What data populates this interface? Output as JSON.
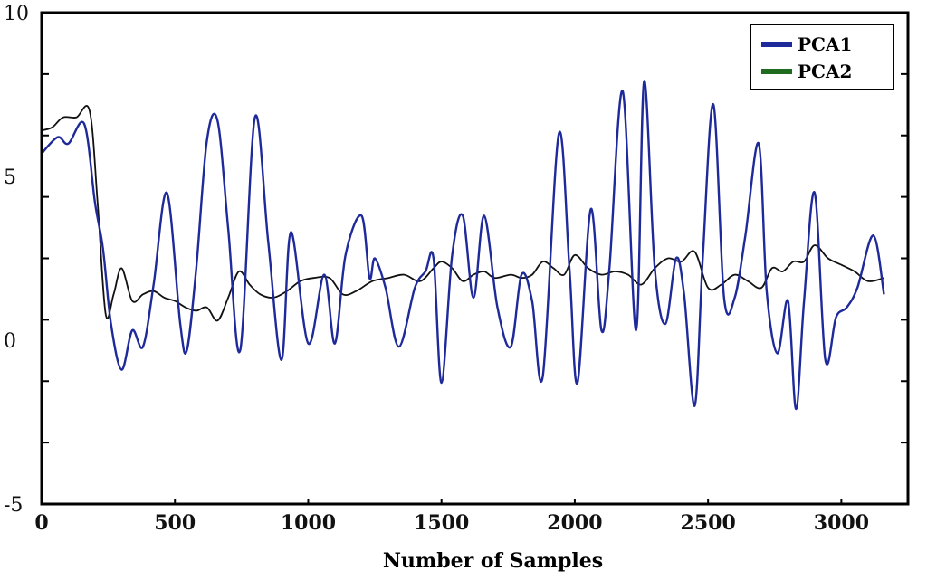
{
  "chart_data": {
    "type": "line",
    "title": "",
    "xlabel": "Number of Samples",
    "ylabel": "",
    "xlim": [
      0,
      3250
    ],
    "ylim": [
      -5,
      10
    ],
    "x_ticks": [
      0,
      500,
      1000,
      1500,
      2000,
      2500,
      3000
    ],
    "y_ticks": [
      10,
      5,
      0,
      -5
    ],
    "legend_position": "top-right",
    "series": [
      {
        "name": "PCA1",
        "color": "#1f2a9a",
        "x": [
          0,
          60,
          100,
          160,
          200,
          230,
          260,
          300,
          340,
          380,
          420,
          470,
          520,
          545,
          580,
          620,
          660,
          700,
          745,
          800,
          850,
          900,
          935,
          1000,
          1060,
          1100,
          1140,
          1200,
          1230,
          1250,
          1290,
          1340,
          1400,
          1440,
          1470,
          1500,
          1540,
          1580,
          1620,
          1660,
          1710,
          1760,
          1800,
          1840,
          1880,
          1940,
          1980,
          2010,
          2060,
          2100,
          2130,
          2180,
          2230,
          2260,
          2300,
          2340,
          2380,
          2410,
          2450,
          2480,
          2520,
          2560,
          2600,
          2640,
          2690,
          2720,
          2760,
          2800,
          2830,
          2860,
          2900,
          2940,
          2980,
          3020,
          3060,
          3120,
          3160
        ],
        "values": [
          5.7,
          6.2,
          6.0,
          6.6,
          4.2,
          2.8,
          0.5,
          -0.9,
          0.3,
          -0.2,
          1.7,
          4.5,
          0.5,
          -0.3,
          2.2,
          6.1,
          6.7,
          3.4,
          -0.3,
          6.8,
          3.0,
          -0.6,
          3.3,
          -0.1,
          2.0,
          -0.1,
          2.6,
          3.8,
          1.9,
          2.5,
          1.6,
          -0.2,
          1.6,
          2.1,
          2.5,
          -1.3,
          2.6,
          3.8,
          1.3,
          3.8,
          1.0,
          -0.2,
          2.0,
          1.2,
          -1.1,
          6.3,
          2.2,
          -1.3,
          4.0,
          0.3,
          2.2,
          7.6,
          0.3,
          7.9,
          2.2,
          0.5,
          2.5,
          1.4,
          -2.0,
          2.5,
          7.2,
          1.3,
          1.3,
          3.2,
          6.0,
          1.5,
          -0.4,
          1.2,
          -2.1,
          1.2,
          4.5,
          -0.6,
          0.7,
          1.0,
          1.6,
          3.2,
          1.4
        ]
      },
      {
        "name": "PCA2",
        "color": "#111111",
        "x": [
          0,
          40,
          80,
          130,
          180,
          210,
          240,
          270,
          300,
          340,
          380,
          420,
          460,
          500,
          540,
          580,
          620,
          660,
          700,
          740,
          780,
          820,
          870,
          920,
          970,
          1020,
          1080,
          1130,
          1180,
          1240,
          1300,
          1360,
          1420,
          1470,
          1500,
          1540,
          1580,
          1620,
          1660,
          1700,
          1760,
          1800,
          1840,
          1880,
          1920,
          1960,
          2000,
          2050,
          2100,
          2150,
          2200,
          2250,
          2300,
          2350,
          2400,
          2450,
          2500,
          2550,
          2600,
          2650,
          2700,
          2740,
          2780,
          2820,
          2860,
          2900,
          2950,
          3000,
          3050,
          3100,
          3160
        ],
        "values": [
          6.4,
          6.5,
          6.8,
          6.8,
          7.0,
          4.2,
          0.8,
          1.4,
          2.2,
          1.2,
          1.4,
          1.5,
          1.3,
          1.2,
          1.0,
          0.9,
          1.0,
          0.6,
          1.3,
          2.1,
          1.7,
          1.4,
          1.3,
          1.5,
          1.8,
          1.9,
          1.9,
          1.4,
          1.5,
          1.8,
          1.9,
          2.0,
          1.8,
          2.2,
          2.4,
          2.2,
          1.8,
          2.0,
          2.1,
          1.9,
          2.0,
          1.9,
          2.0,
          2.4,
          2.2,
          2.0,
          2.6,
          2.2,
          2.0,
          2.1,
          2.0,
          1.7,
          2.2,
          2.5,
          2.4,
          2.7,
          1.6,
          1.7,
          2.0,
          1.8,
          1.6,
          2.2,
          2.1,
          2.4,
          2.4,
          2.9,
          2.5,
          2.3,
          2.1,
          1.8,
          1.9
        ]
      }
    ]
  }
}
